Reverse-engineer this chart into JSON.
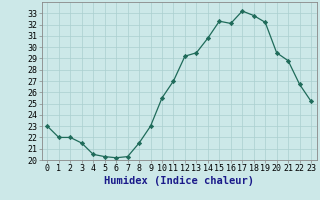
{
  "xlabel": "Humidex (Indice chaleur)",
  "x": [
    0,
    1,
    2,
    3,
    4,
    5,
    6,
    7,
    8,
    9,
    10,
    11,
    12,
    13,
    14,
    15,
    16,
    17,
    18,
    19,
    20,
    21,
    22,
    23
  ],
  "y": [
    23.0,
    22.0,
    22.0,
    21.5,
    20.5,
    20.3,
    20.2,
    20.3,
    21.5,
    23.0,
    25.5,
    27.0,
    29.2,
    29.5,
    30.8,
    32.3,
    32.1,
    33.2,
    32.8,
    32.2,
    29.5,
    28.8,
    26.7,
    25.2
  ],
  "line_color": "#1f6b5a",
  "marker": "D",
  "marker_size": 2.2,
  "bg_color": "#cce8e8",
  "grid_color": "#aacfcf",
  "ylim": [
    20,
    34
  ],
  "yticks": [
    20,
    21,
    22,
    23,
    24,
    25,
    26,
    27,
    28,
    29,
    30,
    31,
    32,
    33
  ],
  "xlim": [
    -0.5,
    23.5
  ],
  "xlabel_fontsize": 7.5,
  "tick_fontsize": 6.0,
  "xlabel_color": "#1a1a8a",
  "xlabel_bold": true
}
